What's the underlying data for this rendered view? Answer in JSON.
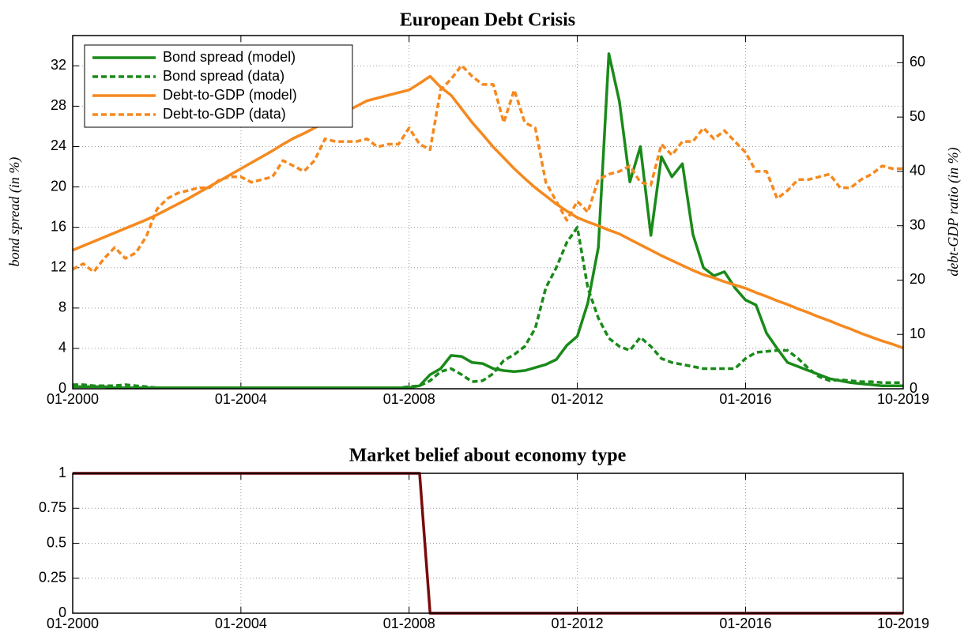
{
  "chart_data": [
    {
      "type": "line",
      "title": "European Debt Crisis",
      "y_label": "bond spread (in %)",
      "y2_label": "debt-GDP ratio (in %)",
      "x": [
        "01-2000",
        "04-2000",
        "07-2000",
        "10-2000",
        "01-2001",
        "04-2001",
        "07-2001",
        "10-2001",
        "01-2002",
        "04-2002",
        "07-2002",
        "10-2002",
        "01-2003",
        "04-2003",
        "07-2003",
        "10-2003",
        "01-2004",
        "04-2004",
        "07-2004",
        "10-2004",
        "01-2005",
        "04-2005",
        "07-2005",
        "10-2005",
        "01-2006",
        "04-2006",
        "07-2006",
        "10-2006",
        "01-2007",
        "04-2007",
        "07-2007",
        "10-2007",
        "01-2008",
        "04-2008",
        "07-2008",
        "10-2008",
        "01-2009",
        "04-2009",
        "07-2009",
        "10-2009",
        "01-2010",
        "04-2010",
        "07-2010",
        "10-2010",
        "01-2011",
        "04-2011",
        "07-2011",
        "10-2011",
        "01-2012",
        "04-2012",
        "07-2012",
        "10-2012",
        "01-2013",
        "04-2013",
        "07-2013",
        "10-2013",
        "01-2014",
        "04-2014",
        "07-2014",
        "10-2014",
        "01-2015",
        "04-2015",
        "07-2015",
        "10-2015",
        "01-2016",
        "04-2016",
        "07-2016",
        "10-2016",
        "01-2017",
        "04-2017",
        "07-2017",
        "10-2017",
        "01-2018",
        "04-2018",
        "07-2018",
        "10-2018",
        "01-2019",
        "04-2019",
        "07-2019",
        "10-2019"
      ],
      "xlim": [
        "01-2000",
        "10-2019"
      ],
      "xticks": [
        "01-2000",
        "01-2004",
        "01-2008",
        "01-2012",
        "01-2016",
        "10-2019"
      ],
      "ylim": [
        0,
        35
      ],
      "yticks": [
        0,
        4,
        8,
        12,
        16,
        20,
        24,
        28,
        32
      ],
      "y2lim": [
        0,
        65
      ],
      "y2ticks": [
        0,
        10,
        20,
        30,
        40,
        50,
        60
      ],
      "grid": true,
      "legend": "upper left",
      "series": [
        {
          "name": "Bond spread (model)",
          "color": "#1a8a1a",
          "style": "solid",
          "values": [
            0.2,
            0.2,
            0.2,
            0.2,
            0.1,
            0.1,
            0.1,
            0.1,
            0.1,
            0.1,
            0.1,
            0.1,
            0.1,
            0.1,
            0.1,
            0.1,
            0.1,
            0.1,
            0.1,
            0.1,
            0.1,
            0.1,
            0.1,
            0.1,
            0.1,
            0.1,
            0.1,
            0.1,
            0.1,
            0.1,
            0.1,
            0.1,
            0.1,
            0.3,
            1.4,
            2.0,
            3.3,
            3.2,
            2.6,
            2.5,
            2.0,
            1.8,
            1.7,
            1.8,
            2.1,
            2.4,
            2.9,
            4.3,
            5.2,
            8.5,
            14.0,
            33.2,
            28.5,
            20.5,
            24.0,
            15.2,
            23.0,
            21.0,
            22.3,
            15.3,
            12.0,
            11.2,
            11.6,
            10.0,
            8.8,
            8.3,
            5.5,
            4.0,
            2.6,
            2.2,
            1.8,
            1.4,
            1.0,
            0.8,
            0.6,
            0.5,
            0.4,
            0.3,
            0.3,
            0.3
          ]
        },
        {
          "name": "Bond spread (data)",
          "color": "#1a8a1a",
          "style": "dashed",
          "values": [
            0.4,
            0.4,
            0.3,
            0.3,
            0.3,
            0.4,
            0.3,
            0.2,
            0.1,
            0.1,
            0.1,
            0.1,
            0.1,
            0.1,
            0.1,
            0.1,
            0.1,
            0.1,
            0.1,
            0.1,
            0.1,
            0.1,
            0.1,
            0.1,
            0.1,
            0.1,
            0.1,
            0.1,
            0.1,
            0.1,
            0.1,
            0.1,
            0.2,
            0.3,
            0.8,
            1.7,
            2.0,
            1.4,
            0.7,
            0.8,
            1.5,
            2.8,
            3.4,
            4.2,
            6.0,
            10.0,
            12.0,
            14.5,
            16.0,
            10.0,
            7.0,
            5.0,
            4.2,
            3.8,
            5.1,
            4.2,
            3.0,
            2.6,
            2.4,
            2.2,
            2.0,
            2.0,
            2.0,
            2.0,
            3.0,
            3.6,
            3.7,
            3.8,
            3.8,
            3.0,
            2.0,
            1.2,
            0.8,
            0.9,
            0.8,
            0.7,
            0.7,
            0.6,
            0.6,
            0.6
          ]
        },
        {
          "name": "Debt-to-GDP (model)",
          "color": "#f5891f",
          "style": "solid",
          "axis": "y2",
          "values": [
            25.5,
            26.3,
            27.1,
            27.9,
            28.7,
            29.5,
            30.3,
            31.1,
            32.0,
            33.0,
            34.0,
            35.0,
            36.1,
            37.2,
            38.3,
            39.4,
            40.5,
            41.6,
            42.7,
            43.8,
            45.0,
            46.1,
            47.0,
            48.0,
            49.0,
            50.0,
            51.0,
            52.0,
            53.0,
            53.5,
            54.0,
            54.5,
            55.0,
            56.2,
            57.5,
            55.5,
            54.0,
            51.5,
            49.0,
            46.8,
            44.5,
            42.5,
            40.5,
            38.7,
            37.0,
            35.5,
            34.0,
            32.7,
            31.5,
            30.7,
            30.0,
            29.2,
            28.5,
            27.5,
            26.5,
            25.5,
            24.5,
            23.6,
            22.7,
            21.8,
            21.0,
            20.4,
            19.7,
            19.1,
            18.5,
            17.7,
            17.0,
            16.2,
            15.5,
            14.7,
            14.0,
            13.2,
            12.5,
            11.7,
            11.0,
            10.2,
            9.5,
            8.8,
            8.2,
            7.5
          ]
        },
        {
          "name": "Debt-to-GDP (data)",
          "color": "#f5891f",
          "style": "dashed",
          "axis": "y2",
          "values": [
            22.0,
            23.0,
            21.5,
            24.0,
            26.0,
            24.0,
            25.0,
            28.0,
            33.0,
            35.0,
            36.0,
            36.5,
            37.0,
            37.0,
            38.5,
            39.0,
            39.0,
            38.0,
            38.5,
            39.0,
            42.0,
            41.0,
            40.0,
            42.0,
            46.0,
            45.5,
            45.5,
            45.5,
            46.0,
            44.5,
            45.0,
            45.0,
            48.0,
            45.0,
            44.0,
            55.0,
            57.0,
            59.5,
            57.5,
            56.0,
            56.0,
            49.0,
            55.0,
            49.0,
            48.0,
            38.0,
            34.5,
            31.0,
            34.5,
            32.5,
            38.5,
            39.5,
            40.0,
            41.0,
            38.0,
            37.5,
            45.0,
            43.0,
            45.5,
            45.5,
            48.0,
            46.0,
            47.5,
            45.5,
            43.5,
            40.0,
            40.0,
            35.0,
            36.5,
            38.5,
            38.5,
            39.0,
            39.5,
            37.0,
            37.0,
            38.5,
            39.5,
            41.0,
            40.5,
            40.5
          ]
        }
      ]
    },
    {
      "type": "line",
      "title": "Market belief about economy type",
      "x": [
        "01-2000",
        "04-2000",
        "07-2000",
        "10-2000",
        "01-2001",
        "04-2001",
        "07-2001",
        "10-2001",
        "01-2002",
        "04-2002",
        "07-2002",
        "10-2002",
        "01-2003",
        "04-2003",
        "07-2003",
        "10-2003",
        "01-2004",
        "04-2004",
        "07-2004",
        "10-2004",
        "01-2005",
        "04-2005",
        "07-2005",
        "10-2005",
        "01-2006",
        "04-2006",
        "07-2006",
        "10-2006",
        "01-2007",
        "04-2007",
        "07-2007",
        "10-2007",
        "01-2008",
        "04-2008",
        "07-2008",
        "10-2008",
        "01-2009",
        "04-2009",
        "07-2009",
        "10-2009",
        "01-2010",
        "04-2010",
        "07-2010",
        "10-2010",
        "01-2011",
        "04-2011",
        "07-2011",
        "10-2011",
        "01-2012",
        "04-2012",
        "07-2012",
        "10-2012",
        "01-2013",
        "04-2013",
        "07-2013",
        "10-2013",
        "01-2014",
        "04-2014",
        "07-2014",
        "10-2014",
        "01-2015",
        "04-2015",
        "07-2015",
        "10-2015",
        "01-2016",
        "04-2016",
        "07-2016",
        "10-2016",
        "01-2017",
        "04-2017",
        "07-2017",
        "10-2017",
        "01-2018",
        "04-2018",
        "07-2018",
        "10-2018",
        "01-2019",
        "04-2019",
        "07-2019",
        "10-2019"
      ],
      "xlim": [
        "01-2000",
        "10-2019"
      ],
      "xticks": [
        "01-2000",
        "01-2004",
        "01-2008",
        "01-2012",
        "01-2016",
        "10-2019"
      ],
      "ylim": [
        0,
        1
      ],
      "yticks": [
        0,
        0.25,
        0.5,
        0.75,
        1
      ],
      "grid": true,
      "series": [
        {
          "color": "#7a0a0a",
          "style": "solid",
          "values": [
            1,
            1,
            1,
            1,
            1,
            1,
            1,
            1,
            1,
            1,
            1,
            1,
            1,
            1,
            1,
            1,
            1,
            1,
            1,
            1,
            1,
            1,
            1,
            1,
            1,
            1,
            1,
            1,
            1,
            1,
            1,
            1,
            1,
            1,
            0,
            0,
            0,
            0,
            0,
            0,
            0,
            0,
            0,
            0,
            0,
            0,
            0,
            0,
            0,
            0,
            0,
            0,
            0,
            0,
            0,
            0,
            0,
            0,
            0,
            0,
            0,
            0,
            0,
            0,
            0,
            0,
            0,
            0,
            0,
            0,
            0,
            0,
            0,
            0,
            0,
            0,
            0,
            0,
            0,
            0
          ]
        }
      ]
    }
  ]
}
